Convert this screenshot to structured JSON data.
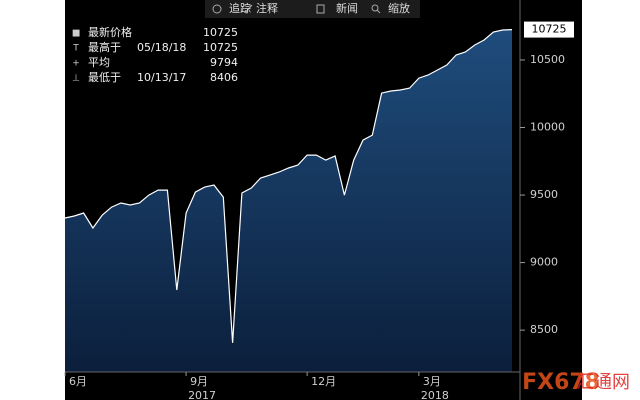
{
  "chart_data": {
    "type": "area",
    "toolbar": [
      "追踪",
      "注释",
      "新闻",
      "缩放"
    ],
    "legend": [
      {
        "label": "最新价格",
        "value": 10725
      },
      {
        "label": "最高于",
        "date": "05/18/18",
        "value": 10725
      },
      {
        "label": "平均",
        "value": 9794
      },
      {
        "label": "最低于",
        "date": "10/13/17",
        "value": 8406
      }
    ],
    "categories": [
      "6月",
      null,
      null,
      null,
      null,
      null,
      null,
      null,
      null,
      null,
      null,
      null,
      null,
      "9月",
      null,
      null,
      null,
      null,
      null,
      null,
      null,
      null,
      null,
      null,
      null,
      null,
      "12月",
      null,
      null,
      null,
      null,
      null,
      null,
      null,
      null,
      null,
      null,
      null,
      "3月",
      null,
      null,
      null,
      null,
      null,
      null,
      null,
      null,
      null,
      null
    ],
    "category_years": [
      null,
      null,
      null,
      null,
      null,
      null,
      null,
      null,
      null,
      null,
      null,
      null,
      null,
      "2017",
      null,
      null,
      null,
      null,
      null,
      null,
      null,
      null,
      null,
      null,
      null,
      null,
      null,
      null,
      null,
      null,
      null,
      null,
      null,
      null,
      null,
      null,
      null,
      null,
      "2018",
      null,
      null,
      null,
      null,
      null,
      null,
      null,
      null,
      null,
      null
    ],
    "values": [
      9330,
      9345,
      9367,
      9256,
      9352,
      9411,
      9441,
      9426,
      9441,
      9500,
      9537,
      9537,
      8797,
      9367,
      9522,
      9559,
      9574,
      9485,
      8406,
      9515,
      9552,
      9626,
      9648,
      9671,
      9700,
      9722,
      9796,
      9796,
      9759,
      9789,
      9500,
      9759,
      9907,
      9944,
      10255,
      10270,
      10278,
      10292,
      10366,
      10389,
      10426,
      10463,
      10537,
      10559,
      10611,
      10648,
      10707,
      10722,
      10725
    ],
    "color": "#ffffff",
    "ylim": [
      8190,
      10944
    ],
    "yticks": [
      8500,
      9000,
      9500,
      10000,
      10500
    ],
    "grid": false,
    "watermark": {
      "brand": "FX678",
      "name": "汇通网"
    }
  }
}
